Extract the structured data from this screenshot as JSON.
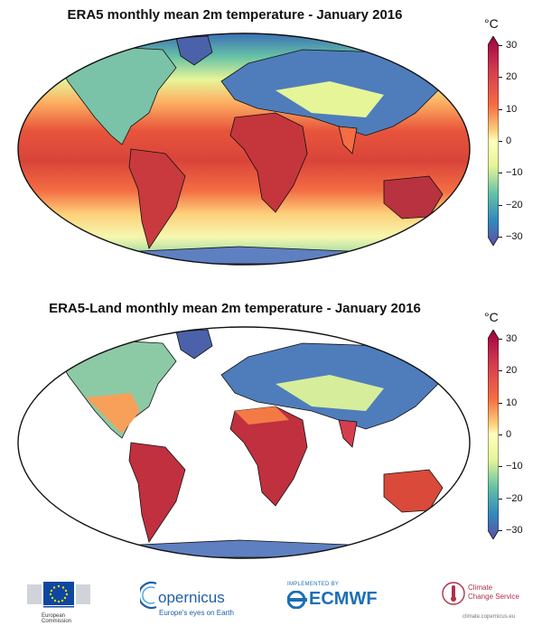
{
  "maps": [
    {
      "title": "ERA5 monthly mean 2m temperature - January 2016",
      "colorbar": {
        "unit": "°C",
        "ticks": [
          "30",
          "20",
          "10",
          "0",
          "−10",
          "−20",
          "−30"
        ]
      }
    },
    {
      "title": "ERA5-Land monthly mean 2m temperature - January 2016",
      "colorbar": {
        "unit": "°C",
        "ticks": [
          "30",
          "20",
          "10",
          "0",
          "−10",
          "−20",
          "−30"
        ]
      }
    }
  ],
  "colors": {
    "hot": "#9e0142",
    "warm": "#f46d43",
    "mild": "#fee08b",
    "neutral": "#ffffbf",
    "cool": "#abdda4",
    "cold": "#3288bd",
    "coldest": "#5e4fa2"
  },
  "logos": {
    "eu": {
      "line1": "European",
      "line2": "Commission"
    },
    "copernicus": {
      "name": "opernicus",
      "tagline": "Europe's eyes on Earth"
    },
    "ecmwf": {
      "implemented": "IMPLEMENTED BY",
      "name": "ECMWF"
    },
    "c3s": {
      "line1": "Climate",
      "line2": "Change Service",
      "url": "climate.copernicus.eu"
    }
  }
}
